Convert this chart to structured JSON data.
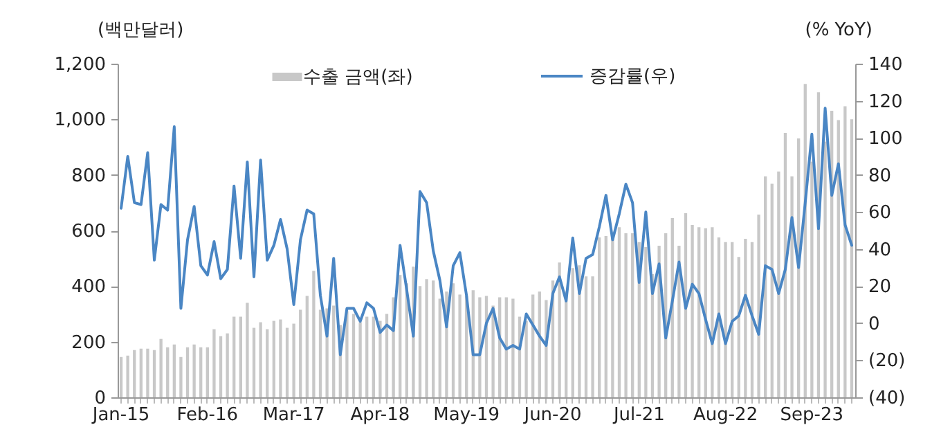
{
  "chart_data": {
    "type": "bar",
    "ylabel": "(백만달러)",
    "y2label": "(% YoY)",
    "categories": [
      "Jan-15",
      null,
      null,
      null,
      null,
      null,
      null,
      null,
      null,
      null,
      null,
      null,
      null,
      "Feb-16",
      null,
      null,
      null,
      null,
      null,
      null,
      null,
      null,
      null,
      null,
      null,
      null,
      "Mar-17",
      null,
      null,
      null,
      null,
      null,
      null,
      null,
      null,
      null,
      null,
      null,
      null,
      "Apr-18",
      null,
      null,
      null,
      null,
      null,
      null,
      null,
      null,
      null,
      null,
      null,
      null,
      "May-19",
      null,
      null,
      null,
      null,
      null,
      null,
      null,
      null,
      null,
      null,
      null,
      null,
      "Jun-20",
      null,
      null,
      null,
      null,
      null,
      null,
      null,
      null,
      null,
      null,
      null,
      null,
      "Jul-21",
      null,
      null,
      null,
      null,
      null,
      null,
      null,
      null,
      null,
      null,
      null,
      null,
      "Aug-22",
      null,
      null,
      null,
      null,
      null,
      null,
      null,
      null,
      null,
      null,
      null,
      null,
      "Sep-23",
      null,
      null,
      null,
      null,
      null,
      null
    ],
    "series": [
      {
        "name": "수출 금액(좌)",
        "color": "#c8c8c8",
        "values": [
          145,
          150,
          170,
          175,
          175,
          170,
          210,
          180,
          190,
          145,
          180,
          190,
          180,
          180,
          245,
          220,
          230,
          290,
          290,
          340,
          250,
          270,
          245,
          275,
          280,
          250,
          265,
          315,
          365,
          455,
          315,
          320,
          330,
          260,
          310,
          300,
          270,
          290,
          290,
          275,
          300,
          360,
          440,
          410,
          470,
          400,
          425,
          420,
          355,
          380,
          410,
          370,
          365,
          385,
          360,
          365,
          330,
          360,
          360,
          355,
          290,
          275,
          370,
          380,
          350,
          420,
          485,
          380,
          465,
          475,
          435,
          435,
          575,
          580,
          575,
          612,
          590,
          590,
          558,
          540,
          443,
          545,
          590,
          645,
          545,
          662,
          620,
          612,
          608,
          612,
          575,
          558,
          558,
          505,
          570,
          558,
          657,
          795,
          768,
          812,
          951,
          795,
          931,
          1127,
          848,
          1097,
          920,
          1031,
          997,
          1047,
          1000
        ]
      },
      {
        "name": "증감률(우)",
        "type": "line",
        "axis": "y2",
        "color": "#4a86c4",
        "values": [
          62,
          90,
          65,
          64,
          92,
          34,
          64,
          61,
          106,
          8,
          45,
          63,
          31,
          26,
          44,
          24,
          29,
          74,
          35,
          87,
          25,
          88,
          34,
          42,
          56,
          40,
          10,
          45,
          61,
          59,
          15,
          -7,
          35,
          -17,
          8,
          8,
          1,
          11,
          8,
          -5,
          -1,
          -4,
          42,
          18,
          -7,
          71,
          65,
          39,
          23,
          -2,
          31,
          38,
          15,
          -17,
          -17,
          0,
          8,
          -8,
          -14,
          -12,
          -14,
          5,
          -1,
          -7,
          -12,
          16,
          25,
          12,
          46,
          16,
          35,
          37,
          52,
          69,
          45,
          59,
          75,
          65,
          22,
          60,
          16,
          32,
          -8,
          12,
          33,
          8,
          21,
          16,
          2,
          -11,
          5,
          -11,
          1,
          4,
          15,
          4,
          -6,
          31,
          29,
          16,
          29,
          57,
          30,
          65,
          102,
          51,
          116,
          69,
          86,
          53,
          42
        ]
      }
    ],
    "ylim": [
      0,
      1200
    ],
    "yticks": [
      0,
      200,
      400,
      600,
      800,
      {
        "value": 1000,
        "label": "1,000"
      },
      {
        "value": 1200,
        "label": "1,200"
      }
    ],
    "y2lim": [
      -40,
      140
    ],
    "y2ticks": [
      {
        "value": -40,
        "label": "(40)"
      },
      {
        "value": -20,
        "label": "(20)"
      },
      0,
      20,
      40,
      60,
      80,
      100,
      120,
      140
    ],
    "legend": "top"
  }
}
